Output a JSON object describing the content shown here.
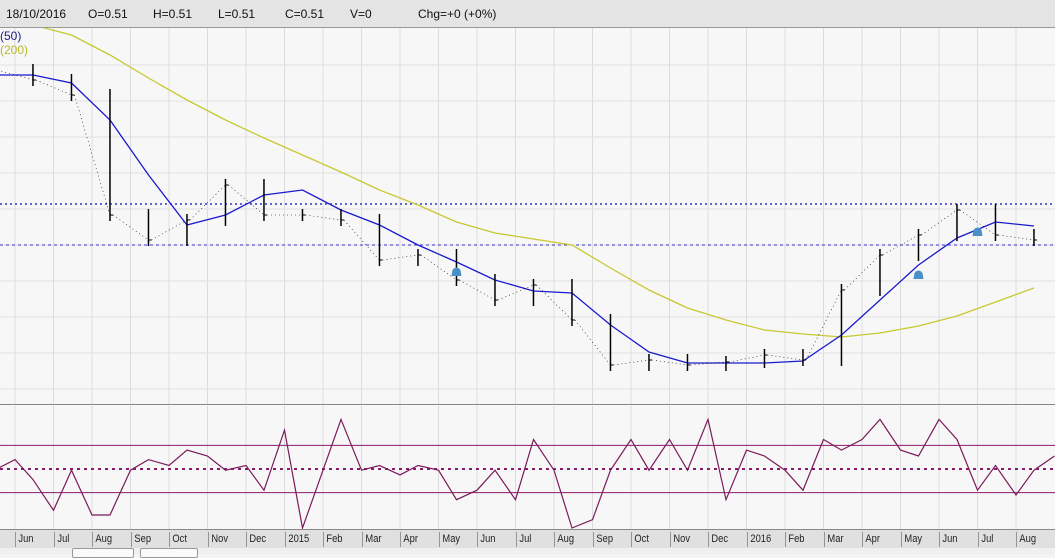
{
  "header": {
    "date": "18/10/2016",
    "open": "O=0.51",
    "high": "H=0.51",
    "low": "L=0.51",
    "close": "C=0.51",
    "volume": "V=0",
    "change": "Chg=+0 (+0%)"
  },
  "legend": {
    "ma50": "(50)",
    "ma200": "(200)"
  },
  "colors": {
    "price": "#000000",
    "ma50": "#1a1acc",
    "ma200": "#c8c832",
    "indicator": "#7a1a5a",
    "bands": "#8b1a6b",
    "dashed_lines": "#3333cc",
    "alert": "#4a90c8"
  },
  "chart_data": [
    {
      "type": "line",
      "panel": "price",
      "x": [
        "2014-05-15",
        "2014-06-15",
        "2014-07-15",
        "2014-08-15",
        "2014-09-15",
        "2014-10-15",
        "2014-11-15",
        "2014-12-15",
        "2015-01-15",
        "2015-02-15",
        "2015-03-15",
        "2015-04-15",
        "2015-05-15",
        "2015-06-15",
        "2015-07-15",
        "2015-08-15",
        "2015-09-15",
        "2015-10-15",
        "2015-11-15",
        "2015-12-15",
        "2016-01-15",
        "2016-02-15",
        "2016-03-15",
        "2016-04-15",
        "2016-05-15",
        "2016-06-15",
        "2016-07-15",
        "2016-08-15"
      ],
      "series": [
        {
          "key": "price",
          "values": [
            0.685,
            0.675,
            0.66,
            0.54,
            0.515,
            0.535,
            0.57,
            0.54,
            0.54,
            0.535,
            0.495,
            0.5,
            0.475,
            0.455,
            0.47,
            0.435,
            0.39,
            0.395,
            0.39,
            0.393,
            0.4,
            0.395,
            0.465,
            0.5,
            0.52,
            0.545,
            0.52,
            0.515
          ]
        },
        {
          "key": "ma50",
          "name": "(50)",
          "values": [
            0.68,
            0.68,
            0.672,
            0.635,
            0.58,
            0.53,
            0.54,
            0.56,
            0.565,
            0.545,
            0.53,
            0.51,
            0.493,
            0.475,
            0.464,
            0.462,
            0.43,
            0.403,
            0.392,
            0.392,
            0.392,
            0.394,
            0.42,
            0.455,
            0.49,
            0.517,
            0.533,
            0.529
          ]
        },
        {
          "key": "ma200",
          "name": "(200)",
          "values": [
            0.74,
            0.73,
            0.72,
            0.7,
            0.677,
            0.655,
            0.635,
            0.617,
            0.6,
            0.583,
            0.565,
            0.55,
            0.533,
            0.522,
            0.516,
            0.51,
            0.487,
            0.465,
            0.447,
            0.435,
            0.425,
            0.421,
            0.418,
            0.422,
            0.429,
            0.439,
            0.453,
            0.467
          ]
        }
      ],
      "ylim": [
        0.355,
        0.725
      ],
      "horizontal_lines": [
        0.551,
        0.51
      ],
      "alerts": [
        "2015-05-15",
        "2016-05-15",
        "2016-07-01"
      ],
      "grid": true
    },
    {
      "type": "line",
      "panel": "indicator",
      "x": [
        "2014-05-15",
        "2014-06-01",
        "2014-06-15",
        "2014-07-01",
        "2014-07-15",
        "2014-08-01",
        "2014-08-15",
        "2014-09-01",
        "2014-09-15",
        "2014-10-01",
        "2014-10-15",
        "2014-11-01",
        "2014-11-15",
        "2014-12-01",
        "2014-12-15",
        "2015-01-01",
        "2015-01-15",
        "2015-02-01",
        "2015-02-15",
        "2015-03-01",
        "2015-03-15",
        "2015-04-01",
        "2015-04-15",
        "2015-05-01",
        "2015-05-15",
        "2015-06-01",
        "2015-06-15",
        "2015-07-01",
        "2015-07-15",
        "2015-08-01",
        "2015-08-15",
        "2015-09-01",
        "2015-09-15",
        "2015-10-01",
        "2015-10-15",
        "2015-11-01",
        "2015-11-15",
        "2015-12-01",
        "2015-12-15",
        "2016-01-01",
        "2016-01-15",
        "2016-02-01",
        "2016-02-15",
        "2016-03-01",
        "2016-03-15",
        "2016-04-01",
        "2016-04-15",
        "2016-05-01",
        "2016-05-15",
        "2016-06-01",
        "2016-06-15",
        "2016-07-01",
        "2016-07-15",
        "2016-08-01",
        "2016-08-15",
        "2016-09-01"
      ],
      "values": [
        49,
        58,
        41,
        15,
        49,
        11,
        11,
        49,
        58,
        53,
        66,
        61,
        49,
        53,
        32,
        83,
        0,
        49,
        92,
        49,
        53,
        45,
        53,
        49,
        24,
        32,
        49,
        24,
        75,
        49,
        0,
        7,
        49,
        75,
        49,
        75,
        49,
        92,
        24,
        66,
        61,
        49,
        32,
        75,
        66,
        75,
        92,
        66,
        61,
        92,
        75,
        32,
        53,
        28,
        49,
        61
      ],
      "ylim": [
        0,
        100
      ],
      "levels": [
        70,
        50,
        30
      ]
    }
  ],
  "x_axis": {
    "ticks": [
      {
        "label": "Jun",
        "date": "2014-06"
      },
      {
        "label": "Jul",
        "date": "2014-07"
      },
      {
        "label": "Aug",
        "date": "2014-08"
      },
      {
        "label": "Sep",
        "date": "2014-09"
      },
      {
        "label": "Oct",
        "date": "2014-10"
      },
      {
        "label": "Nov",
        "date": "2014-11"
      },
      {
        "label": "Dec",
        "date": "2014-12"
      },
      {
        "label": "2015",
        "date": "2015-01"
      },
      {
        "label": "Feb",
        "date": "2015-02"
      },
      {
        "label": "Mar",
        "date": "2015-03"
      },
      {
        "label": "Apr",
        "date": "2015-04"
      },
      {
        "label": "May",
        "date": "2015-05"
      },
      {
        "label": "Jun",
        "date": "2015-06"
      },
      {
        "label": "Jul",
        "date": "2015-07"
      },
      {
        "label": "Aug",
        "date": "2015-08"
      },
      {
        "label": "Sep",
        "date": "2015-09"
      },
      {
        "label": "Oct",
        "date": "2015-10"
      },
      {
        "label": "Nov",
        "date": "2015-11"
      },
      {
        "label": "Dec",
        "date": "2015-12"
      },
      {
        "label": "2016",
        "date": "2016-01"
      },
      {
        "label": "Feb",
        "date": "2016-02"
      },
      {
        "label": "Mar",
        "date": "2016-03"
      },
      {
        "label": "Apr",
        "date": "2016-04"
      },
      {
        "label": "May",
        "date": "2016-05"
      },
      {
        "label": "Jun",
        "date": "2016-06"
      },
      {
        "label": "Jul",
        "date": "2016-07"
      },
      {
        "label": "Aug",
        "date": "2016-08"
      }
    ]
  }
}
